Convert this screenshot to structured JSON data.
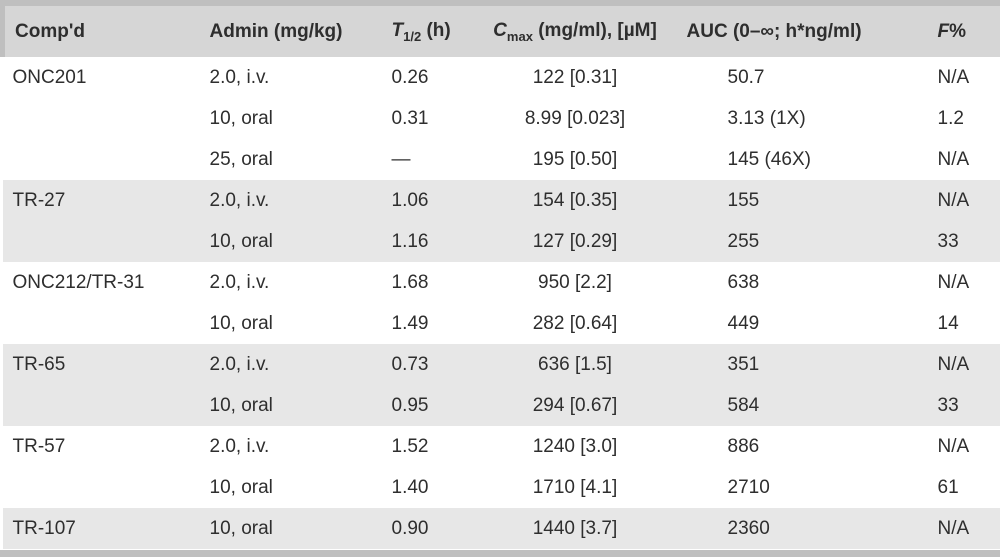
{
  "figure": {
    "description": "Pharmacokinetic parameters table"
  },
  "colors": {
    "header_bg": "#d6d6d6",
    "band_bg": "#e7e7e7",
    "frame": "#bfbfbf",
    "text": "#2e2e2e"
  },
  "table": {
    "header": {
      "compound": "Comp'd",
      "admin": "Admin (mg/kg)",
      "thalf": {
        "symbol": "T",
        "sub": "1/2",
        "rest": " (h)"
      },
      "cmax": {
        "symbol": "C",
        "sub": "max",
        "rest": " (mg/ml), [µM]"
      },
      "auc": "AUC (0–∞; h*ng/ml)",
      "f": {
        "symbol": "F",
        "rest": "%"
      }
    },
    "rows": [
      {
        "group": 0,
        "compound": "ONC201",
        "admin": "2.0, i.v.",
        "thalf": "0.26",
        "cmax": "122 [0.31]",
        "auc": "50.7",
        "f": "N/A"
      },
      {
        "group": 0,
        "compound": "",
        "admin": "10, oral",
        "thalf": "0.31",
        "cmax": "8.99 [0.023]",
        "auc": "3.13 (1X)",
        "f": "1.2"
      },
      {
        "group": 0,
        "compound": "",
        "admin": "25, oral",
        "thalf": "—",
        "cmax": "195 [0.50]",
        "auc": "145 (46X)",
        "f": "N/A"
      },
      {
        "group": 1,
        "compound": "TR-27",
        "admin": "2.0, i.v.",
        "thalf": "1.06",
        "cmax": "154 [0.35]",
        "auc": "155",
        "f": "N/A"
      },
      {
        "group": 1,
        "compound": "",
        "admin": "10, oral",
        "thalf": "1.16",
        "cmax": "127 [0.29]",
        "auc": "255",
        "f": "33"
      },
      {
        "group": 2,
        "compound": "ONC212/TR-31",
        "admin": "2.0, i.v.",
        "thalf": "1.68",
        "cmax": "950 [2.2]",
        "auc": "638",
        "f": "N/A"
      },
      {
        "group": 2,
        "compound": "",
        "admin": "10, oral",
        "thalf": "1.49",
        "cmax": "282 [0.64]",
        "auc": "449",
        "f": "14"
      },
      {
        "group": 3,
        "compound": "TR-65",
        "admin": "2.0, i.v.",
        "thalf": "0.73",
        "cmax": "636 [1.5]",
        "auc": "351",
        "f": "N/A"
      },
      {
        "group": 3,
        "compound": "",
        "admin": "10, oral",
        "thalf": "0.95",
        "cmax": "294 [0.67]",
        "auc": "584",
        "f": "33"
      },
      {
        "group": 4,
        "compound": "TR-57",
        "admin": "2.0, i.v.",
        "thalf": "1.52",
        "cmax": "1240 [3.0]",
        "auc": "886",
        "f": "N/A"
      },
      {
        "group": 4,
        "compound": "",
        "admin": "10, oral",
        "thalf": "1.40",
        "cmax": "1710 [4.1]",
        "auc": "2710",
        "f": "61"
      },
      {
        "group": 5,
        "compound": "TR-107",
        "admin": "10, oral",
        "thalf": "0.90",
        "cmax": "1440 [3.7]",
        "auc": "2360",
        "f": "N/A"
      }
    ]
  },
  "chart_data": {
    "type": "table",
    "columns": [
      "Comp'd",
      "Admin (mg/kg)",
      "T1/2 (h)",
      "Cmax (mg/ml), [µM]",
      "AUC (0–∞; h*ng/ml)",
      "F%"
    ],
    "rows": [
      [
        "ONC201",
        "2.0, i.v.",
        "0.26",
        "122 [0.31]",
        "50.7",
        "N/A"
      ],
      [
        "",
        "10, oral",
        "0.31",
        "8.99 [0.023]",
        "3.13 (1X)",
        "1.2"
      ],
      [
        "",
        "25, oral",
        "—",
        "195 [0.50]",
        "145 (46X)",
        "N/A"
      ],
      [
        "TR-27",
        "2.0, i.v.",
        "1.06",
        "154 [0.35]",
        "155",
        "N/A"
      ],
      [
        "",
        "10, oral",
        "1.16",
        "127 [0.29]",
        "255",
        "33"
      ],
      [
        "ONC212/TR-31",
        "2.0, i.v.",
        "1.68",
        "950 [2.2]",
        "638",
        "N/A"
      ],
      [
        "",
        "10, oral",
        "1.49",
        "282 [0.64]",
        "449",
        "14"
      ],
      [
        "TR-65",
        "2.0, i.v.",
        "0.73",
        "636 [1.5]",
        "351",
        "N/A"
      ],
      [
        "",
        "10, oral",
        "0.95",
        "294 [0.67]",
        "584",
        "33"
      ],
      [
        "TR-57",
        "2.0, i.v.",
        "1.52",
        "1240 [3.0]",
        "886",
        "N/A"
      ],
      [
        "",
        "10, oral",
        "1.40",
        "1710 [4.1]",
        "2710",
        "61"
      ],
      [
        "TR-107",
        "10, oral",
        "0.90",
        "1440 [3.7]",
        "2360",
        "N/A"
      ]
    ]
  }
}
